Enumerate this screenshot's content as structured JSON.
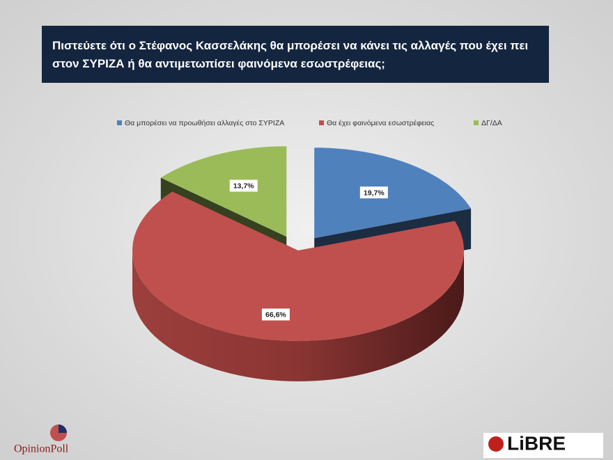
{
  "chart_data": {
    "type": "pie3d",
    "title": "Πιστεύετε ότι ο Στέφανος Κασσελάκης θα μπορέσει να κάνει τις αλλαγές που έχει πει στον ΣΥΡΙΖΑ ή θα αντιμετωπίσει φαινόμενα εσωστρέφειας;",
    "categories": [
      "Θα μπορέσει να προωθήσει αλλαγές στο ΣΥΡΙΖΑ",
      "Θα έχει φαινόμενα εσωστρέφειας",
      "ΔΓ/ΔΑ"
    ],
    "values": [
      19.7,
      66.6,
      13.7
    ],
    "value_labels": [
      "19,7%",
      "66,6%",
      "13,7%"
    ],
    "colors": [
      "#4f81bd",
      "#c0504d",
      "#9bbb59"
    ],
    "legend": "top"
  },
  "logos": {
    "left": "OpinionPoll",
    "right": "LiBRE"
  }
}
